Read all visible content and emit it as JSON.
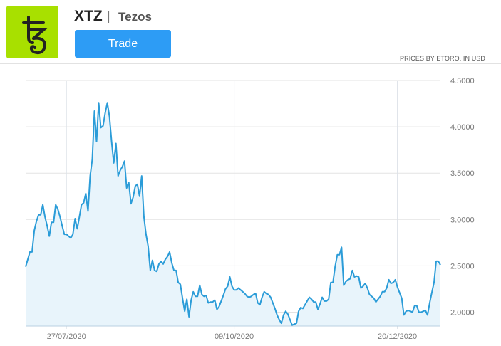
{
  "header": {
    "symbol": "XTZ",
    "separator": "|",
    "name": "Tezos",
    "trade_label": "Trade",
    "source_note": "PRICES BY ETORO. IN USD",
    "logo_color": "#a8e000",
    "logo_icon": "tezos-logo",
    "trade_color": "#2d9cf5"
  },
  "chart_data": {
    "type": "area",
    "title": "",
    "xlabel": "",
    "ylabel": "",
    "xlim": [
      "09/07/2020",
      "08/01/2021"
    ],
    "ylim": [
      1.85,
      4.6
    ],
    "x_ticks": [
      "27/07/2020",
      "09/10/2020",
      "20/12/2020"
    ],
    "y_ticks": [
      "2.0000",
      "2.5000",
      "3.0000",
      "3.5000",
      "4.0000",
      "4.5000"
    ],
    "grid": true,
    "y_axis_side": "right",
    "line_color": "#2b9cd8",
    "fill_color": "#e8f4fb",
    "values": [
      2.49,
      2.57,
      2.65,
      2.65,
      2.88,
      2.98,
      3.05,
      3.05,
      3.16,
      3.03,
      2.93,
      2.82,
      2.97,
      2.97,
      3.16,
      3.11,
      3.03,
      2.93,
      2.84,
      2.84,
      2.82,
      2.8,
      2.84,
      3.01,
      2.9,
      3.03,
      3.16,
      3.18,
      3.28,
      3.09,
      3.47,
      3.65,
      4.17,
      3.84,
      4.26,
      3.99,
      4.01,
      4.15,
      4.26,
      4.11,
      3.84,
      3.61,
      3.82,
      3.47,
      3.53,
      3.57,
      3.63,
      3.34,
      3.4,
      3.17,
      3.24,
      3.36,
      3.38,
      3.25,
      3.47,
      3.03,
      2.84,
      2.71,
      2.45,
      2.56,
      2.45,
      2.44,
      2.52,
      2.55,
      2.52,
      2.57,
      2.6,
      2.65,
      2.53,
      2.45,
      2.45,
      2.32,
      2.3,
      2.15,
      2.01,
      2.14,
      1.95,
      2.13,
      2.22,
      2.17,
      2.17,
      2.29,
      2.19,
      2.17,
      2.18,
      2.1,
      2.11,
      2.11,
      2.13,
      2.03,
      2.06,
      2.12,
      2.18,
      2.25,
      2.28,
      2.38,
      2.28,
      2.24,
      2.24,
      2.26,
      2.24,
      2.22,
      2.2,
      2.17,
      2.16,
      2.17,
      2.19,
      2.2,
      2.1,
      2.08,
      2.16,
      2.22,
      2.2,
      2.19,
      2.16,
      2.1,
      2.04,
      1.97,
      1.92,
      1.88,
      1.97,
      2.01,
      1.98,
      1.92,
      1.86,
      1.87,
      1.88,
      2.01,
      2.05,
      2.04,
      2.08,
      2.12,
      2.16,
      2.14,
      2.11,
      2.11,
      2.03,
      2.09,
      2.16,
      2.12,
      2.12,
      2.14,
      2.32,
      2.32,
      2.49,
      2.62,
      2.62,
      2.7,
      2.29,
      2.33,
      2.35,
      2.36,
      2.45,
      2.38,
      2.39,
      2.38,
      2.26,
      2.28,
      2.31,
      2.26,
      2.19,
      2.17,
      2.15,
      2.11,
      2.14,
      2.17,
      2.22,
      2.22,
      2.26,
      2.35,
      2.31,
      2.32,
      2.35,
      2.27,
      2.21,
      2.15,
      1.97,
      2.01,
      2.02,
      2.01,
      2.0,
      2.07,
      2.07,
      2.0,
      2.0,
      2.01,
      2.02,
      1.97,
      2.1,
      2.21,
      2.32,
      2.55,
      2.55,
      2.51
    ]
  }
}
